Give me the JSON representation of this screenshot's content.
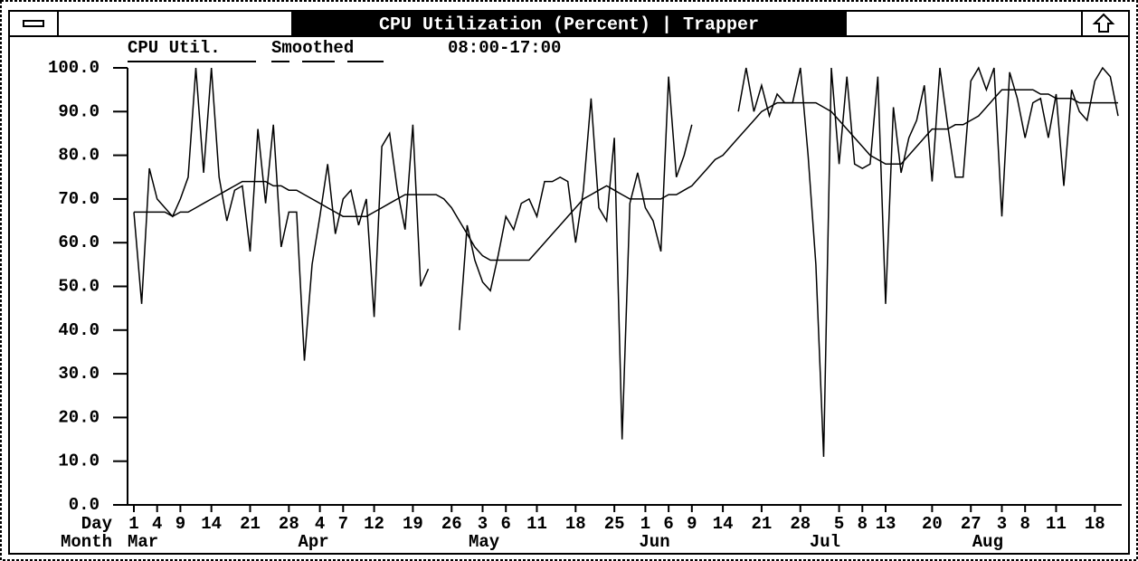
{
  "chart_data": {
    "type": "line",
    "title": "CPU Utilization (Percent) | Trapper",
    "time_range": "08:00-17:00",
    "x_label": "Day",
    "month_label": "Month",
    "categories": [
      "1",
      null,
      null,
      "4",
      null,
      null,
      "9",
      null,
      null,
      null,
      "14",
      null,
      null,
      null,
      null,
      "21",
      null,
      null,
      null,
      null,
      "28",
      null,
      null,
      null,
      "4",
      null,
      null,
      "7",
      null,
      null,
      null,
      "12",
      null,
      null,
      null,
      null,
      "19",
      null,
      null,
      null,
      null,
      "26",
      null,
      null,
      null,
      "3",
      null,
      null,
      "6",
      null,
      null,
      null,
      "11",
      null,
      null,
      null,
      null,
      "18",
      null,
      null,
      null,
      null,
      "25",
      null,
      null,
      null,
      "1",
      null,
      null,
      "6",
      null,
      null,
      "9",
      null,
      null,
      null,
      "14",
      null,
      null,
      null,
      null,
      "21",
      null,
      null,
      null,
      null,
      "28",
      null,
      null,
      null,
      null,
      "5",
      null,
      null,
      "8",
      null,
      null,
      "13",
      null,
      null,
      null,
      null,
      null,
      "20",
      null,
      null,
      null,
      null,
      "27",
      null,
      null,
      null,
      "3",
      null,
      null,
      "8",
      null,
      null,
      null,
      "11",
      null,
      null,
      null,
      null,
      "18",
      null,
      null,
      null
    ],
    "months": [
      "Mar",
      null,
      null,
      null,
      null,
      null,
      null,
      null,
      null,
      null,
      null,
      null,
      null,
      null,
      null,
      null,
      null,
      null,
      null,
      null,
      null,
      null,
      "Apr",
      null,
      null,
      null,
      null,
      null,
      null,
      null,
      null,
      null,
      null,
      null,
      null,
      null,
      null,
      null,
      null,
      null,
      null,
      null,
      null,
      null,
      "May",
      null,
      null,
      null,
      null,
      null,
      null,
      null,
      null,
      null,
      null,
      null,
      null,
      null,
      null,
      null,
      null,
      null,
      null,
      null,
      null,
      null,
      "Jun",
      null,
      null,
      null,
      null,
      null,
      null,
      null,
      null,
      null,
      null,
      null,
      null,
      null,
      null,
      null,
      null,
      null,
      null,
      null,
      null,
      null,
      "Jul",
      null,
      null,
      null,
      null,
      null,
      null,
      null,
      null,
      null,
      null,
      null,
      null,
      null,
      null,
      null,
      null,
      null,
      null,
      null,
      null,
      "Aug",
      null,
      null,
      null,
      null,
      null,
      null,
      null,
      null,
      null,
      null,
      null,
      null,
      null,
      null,
      null,
      null,
      null,
      null
    ],
    "series": [
      {
        "name": "CPU Util.",
        "color": "#000000",
        "values": [
          67,
          46,
          77,
          70,
          68,
          66,
          70,
          75,
          100,
          76,
          100,
          75,
          65,
          72,
          73,
          58,
          86,
          69,
          87,
          59,
          67,
          67,
          33,
          55,
          66,
          78,
          62,
          70,
          72,
          64,
          70,
          43,
          82,
          85,
          72,
          63,
          87,
          50,
          54,
          null,
          null,
          null,
          40,
          64,
          56,
          51,
          49,
          57,
          66,
          63,
          69,
          70,
          66,
          74,
          74,
          75,
          74,
          60,
          72,
          93,
          68,
          65,
          84,
          15,
          69,
          76,
          68,
          65,
          58,
          98,
          75,
          80,
          87,
          null,
          null,
          null,
          null,
          null,
          90,
          100,
          90,
          96,
          89,
          94,
          92,
          92,
          100,
          80,
          55,
          11,
          100,
          78,
          98,
          78,
          77,
          78,
          98,
          46,
          91,
          76,
          84,
          88,
          96,
          74,
          100,
          87,
          75,
          75,
          97,
          100,
          95,
          100,
          66,
          99,
          93,
          84,
          92,
          93,
          84,
          94,
          73,
          95,
          90,
          88,
          97,
          100,
          98,
          89
        ]
      },
      {
        "name": "Smoothed",
        "color": "#000000",
        "values": [
          67,
          67,
          67,
          67,
          67,
          66,
          67,
          67,
          68,
          69,
          70,
          71,
          72,
          73,
          74,
          74,
          74,
          74,
          73,
          73,
          72,
          72,
          71,
          70,
          69,
          68,
          67,
          66,
          66,
          66,
          66,
          67,
          68,
          69,
          70,
          71,
          71,
          71,
          71,
          71,
          70,
          68,
          65,
          62,
          59,
          57,
          56,
          56,
          56,
          56,
          56,
          56,
          58,
          60,
          62,
          64,
          66,
          68,
          70,
          71,
          72,
          73,
          72,
          71,
          70,
          70,
          70,
          70,
          70,
          71,
          71,
          72,
          73,
          75,
          77,
          79,
          80,
          82,
          84,
          86,
          88,
          90,
          91,
          92,
          92,
          92,
          92,
          92,
          92,
          91,
          90,
          88,
          86,
          84,
          82,
          80,
          79,
          78,
          78,
          78,
          80,
          82,
          84,
          86,
          86,
          86,
          87,
          87,
          88,
          89,
          91,
          93,
          95,
          95,
          95,
          95,
          95,
          94,
          94,
          93,
          93,
          93,
          92,
          92,
          92,
          92,
          92,
          92
        ]
      }
    ],
    "ylim": [
      0,
      100
    ],
    "yticks": [
      {
        "value": 0,
        "label": "0.0"
      },
      {
        "value": 10,
        "label": "10.0"
      },
      {
        "value": 20,
        "label": "20.0"
      },
      {
        "value": 30,
        "label": "30.0"
      },
      {
        "value": 40,
        "label": "40.0"
      },
      {
        "value": 50,
        "label": "50.0"
      },
      {
        "value": 60,
        "label": "60.0"
      },
      {
        "value": 70,
        "label": "70.0"
      },
      {
        "value": 80,
        "label": "80.0"
      },
      {
        "value": 90,
        "label": "90.0"
      },
      {
        "value": 100,
        "label": "100.0"
      }
    ],
    "grid": false
  }
}
